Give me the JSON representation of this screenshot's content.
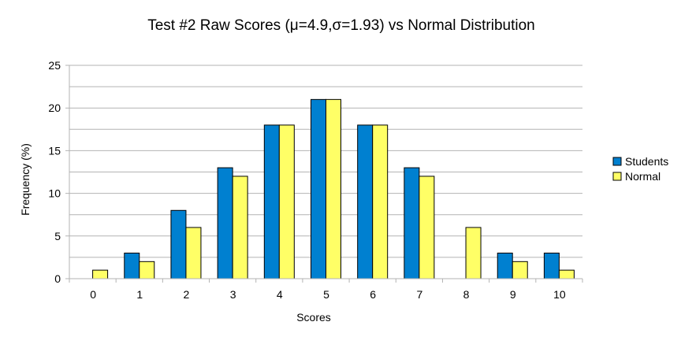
{
  "chart_data": {
    "type": "bar",
    "title": "Test #2 Raw Scores (μ=4.9,σ=1.93) vs Normal Distribution",
    "xlabel": "Scores",
    "ylabel": "Frequency (%)",
    "categories": [
      "0",
      "1",
      "2",
      "3",
      "4",
      "5",
      "6",
      "7",
      "8",
      "9",
      "10"
    ],
    "ylim": [
      0,
      25
    ],
    "yticks": [
      0,
      5,
      10,
      15,
      20,
      25
    ],
    "grid": true,
    "minor_grid": true,
    "legend_position": "right",
    "series": [
      {
        "name": "Students",
        "color": "#0080d0",
        "values": [
          0,
          3,
          8,
          13,
          18,
          21,
          18,
          13,
          0,
          3,
          3
        ]
      },
      {
        "name": "Normal",
        "color": "#ffff66",
        "values": [
          1,
          2,
          6,
          12,
          18,
          21,
          18,
          12,
          6,
          2,
          1
        ]
      }
    ]
  }
}
